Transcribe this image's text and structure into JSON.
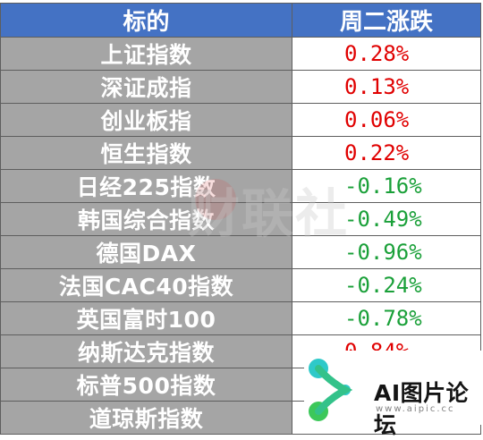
{
  "table": {
    "headers": [
      "标的",
      "周二涨跌"
    ],
    "rows": [
      {
        "name": "上证指数",
        "change": "0.28%",
        "direction": "up"
      },
      {
        "name": "深证成指",
        "change": "0.13%",
        "direction": "up"
      },
      {
        "name": "创业板指",
        "change": "0.06%",
        "direction": "up"
      },
      {
        "name": "恒生指数",
        "change": "0.22%",
        "direction": "up"
      },
      {
        "name": "日经225指数",
        "change": "-0.16%",
        "direction": "down"
      },
      {
        "name": "韩国综合指数",
        "change": "-0.49%",
        "direction": "down"
      },
      {
        "name": "德国DAX",
        "change": "-0.96%",
        "direction": "down"
      },
      {
        "name": "法国CAC40指数",
        "change": "-0.24%",
        "direction": "down"
      },
      {
        "name": "英国富时100",
        "change": "-0.78%",
        "direction": "down"
      },
      {
        "name": "纳斯达克指数",
        "change": "0.84%",
        "direction": "up"
      },
      {
        "name": "标普500指数",
        "change": "",
        "direction": "up"
      },
      {
        "name": "道琼斯指数",
        "change": "",
        "direction": "up"
      }
    ]
  },
  "colors": {
    "header_bg": "#4472c4",
    "name_cell_bg": "#a5a5a5",
    "up": "#e00000",
    "down": "#1aa039",
    "logo_cyan": "#2ec9c9",
    "logo_green": "#3cc85a"
  },
  "watermark": {
    "text": "财联社"
  },
  "logo": {
    "title": "AI图片论坛",
    "url": "www.aipic.cc",
    "icon": "network-logo-icon"
  }
}
